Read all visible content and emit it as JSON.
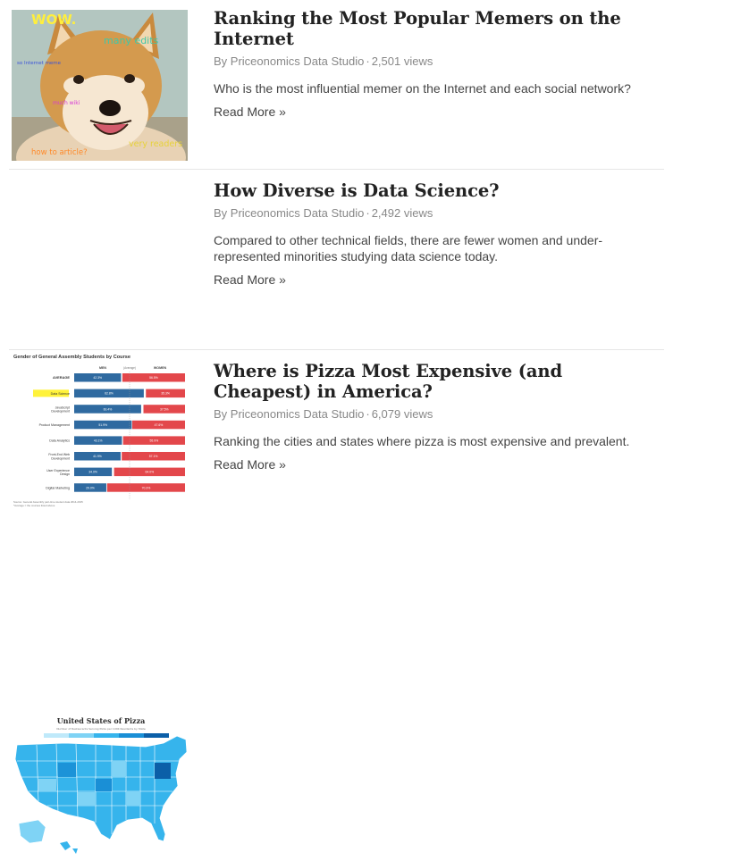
{
  "posts": [
    {
      "title": "Ranking the Most Popular Memers on the Internet",
      "author": "By Priceonomics Data Studio",
      "views": "2,501 views",
      "excerpt": "Who is the most influential memer on the Internet and each social network?",
      "read_more": "Read More »",
      "thumbnail": {
        "captions": {
          "wow": "WOW.",
          "many_edits": "many edits",
          "so_internet": "so Internet meme",
          "much_wiki": "much wiki",
          "very_readers": "very readers",
          "how_to": "how to article?"
        }
      }
    },
    {
      "title": "How Diverse is Data Science?",
      "author": "By Priceonomics Data Studio",
      "views": "2,492 views",
      "excerpt": "Compared to other technical fields, there are fewer women and under-represented minorities studying data science today.",
      "read_more": "Read More »",
      "thumbnail": {
        "chart_data": {
          "type": "bar",
          "title": "Gender of General Assembly Students by Course",
          "legend": [
            "MEN",
            "(Average)",
            "WOMEN"
          ],
          "categories": [
            "AVERAGE",
            "Data Science",
            "JavaScript Development",
            "Product Management",
            "Data Analytics",
            "Front-End Web Development",
            "User Experience Design",
            "Digital Marketing"
          ],
          "highlighted": "Data Science",
          "series": [
            {
              "name": "MEN",
              "values": [
                42.3,
                62.8,
                60.4,
                51.9,
                43.1,
                41.9,
                34.0,
                29.0
              ]
            },
            {
              "name": "WOMEN",
              "values": [
                56.5,
                35.3,
                37.5,
                47.6,
                55.9,
                57.1,
                64.0,
                70.3
              ]
            }
          ],
          "value_labels_men": [
            "42.3%",
            "62.8%",
            "60.4%",
            "51.9%",
            "43.1%",
            "41.9%",
            "34.0%",
            "29.0%"
          ],
          "value_labels_women": [
            "56.5%",
            "35.3%",
            "37.5%",
            "47.6%",
            "55.9%",
            "57.1%",
            "64.0%",
            "70.3%"
          ],
          "footnote": "Source: General Assembly part-time student data 2014-2015",
          "footnote2": "*Average = the courses listed above",
          "colors": {
            "men": "#2f6aa0",
            "women": "#e3474b",
            "highlight": "#fff23a"
          }
        }
      }
    },
    {
      "title": "Where is Pizza Most Expensive (and Cheapest) in America?",
      "author": "By Priceonomics Data Studio",
      "views": "6,079 views",
      "excerpt": "Ranking the cities and states where pizza is most expensive and prevalent.",
      "read_more": "Read More »",
      "thumbnail": {
        "title": "United States of Pizza",
        "subtitle": "Number of Restaurants Serving Pizza per 100K Residents by State",
        "colors": {
          "light": "#7fd3f5",
          "mid": "#36b4ec",
          "dark": "#1a8fd6",
          "darkest": "#0b5fa8"
        }
      }
    }
  ],
  "meta_separator": "·"
}
